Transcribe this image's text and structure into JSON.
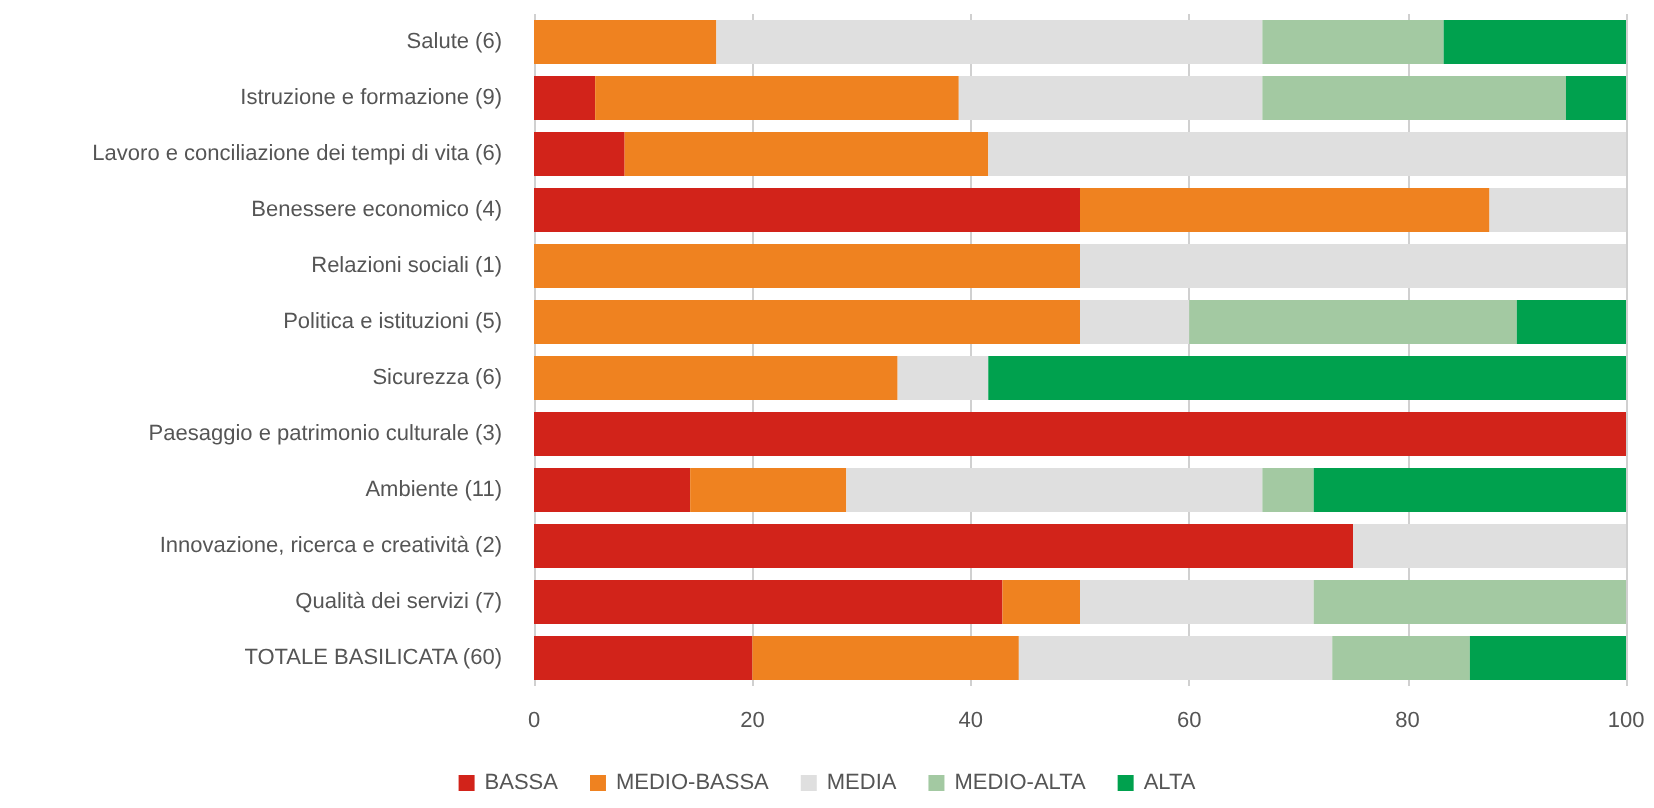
{
  "chart_data": {
    "type": "bar",
    "orientation": "horizontal",
    "stacked": true,
    "categories": [
      "Salute (6)",
      "Istruzione e formazione (9)",
      "Lavoro e conciliazione dei tempi di vita (6)",
      "Benessere economico (4)",
      "Relazioni sociali (1)",
      "Politica e istituzioni (5)",
      "Sicurezza (6)",
      "Paesaggio e patrimonio culturale (3)",
      "Ambiente (11)",
      "Innovazione, ricerca e creatività (2)",
      "Qualità dei servizi (7)",
      "TOTALE BASILICATA (60)"
    ],
    "series": [
      {
        "name": "BASSA",
        "color": "#d2231a",
        "values": [
          null,
          5.6,
          8.3,
          50,
          null,
          null,
          null,
          100,
          14.3,
          75,
          42.9,
          20
        ]
      },
      {
        "name": "MEDIO-BASSA",
        "color": "#ef8220",
        "values": [
          16.7,
          33.3,
          33.3,
          37.5,
          50,
          50,
          33.3,
          null,
          14.3,
          null,
          7.1,
          24.4
        ]
      },
      {
        "name": "MEDIA",
        "color": "#dfdfdf",
        "values": [
          50,
          27.8,
          58.4,
          12.5,
          50,
          10,
          8.3,
          null,
          38.1,
          25,
          21.4,
          28.7
        ]
      },
      {
        "name": "MEDIO-ALTA",
        "color": "#a3c9a2",
        "values": [
          16.6,
          27.8,
          null,
          null,
          null,
          30,
          null,
          null,
          4.7,
          null,
          28.6,
          12.6
        ]
      },
      {
        "name": "ALTA",
        "color": "#00a14e",
        "values": [
          16.7,
          5.5,
          null,
          null,
          null,
          10,
          58.4,
          null,
          28.6,
          null,
          null,
          14.3
        ]
      }
    ],
    "xlim": [
      0,
      100
    ],
    "xticks": [
      0,
      20,
      40,
      60,
      80,
      100
    ],
    "grid": "x",
    "legend": "bottom"
  }
}
